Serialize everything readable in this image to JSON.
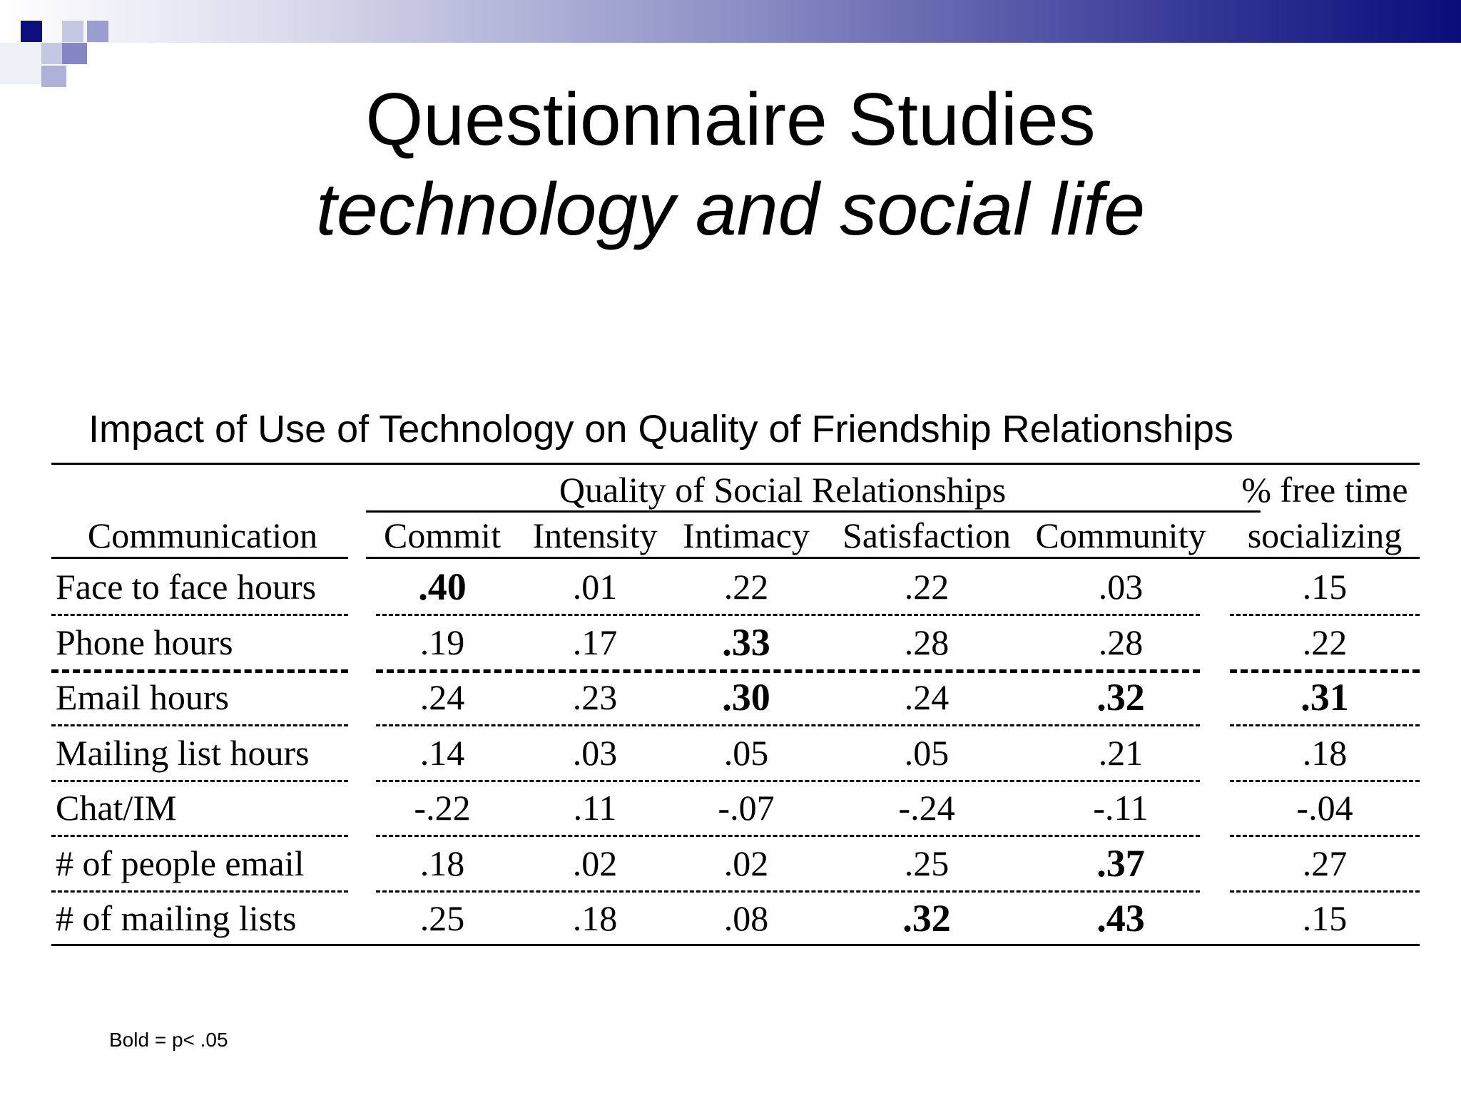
{
  "slide": {
    "title": "Questionnaire Studies",
    "subtitle": "technology and social life",
    "caption": "Impact of Use of Technology on Quality of Friendship Relationships",
    "footnote": "Bold = p< .05"
  },
  "table": {
    "group_header": "Quality of Social Relationships",
    "free_time_header_line1": "% free time",
    "free_time_header_line2": "socializing",
    "columns": [
      "Communication",
      "Commit",
      "Intensity",
      "Intimacy",
      "Satisfaction",
      "Community",
      "socializing"
    ],
    "rows": [
      {
        "label": "Face to face hours",
        "values": [
          ".40",
          ".01",
          ".22",
          ".22",
          ".03",
          ".15"
        ],
        "bold": [
          true,
          false,
          false,
          false,
          false,
          false
        ]
      },
      {
        "label": "Phone hours",
        "values": [
          ".19",
          ".17",
          ".33",
          ".28",
          ".28",
          ".22"
        ],
        "bold": [
          false,
          false,
          true,
          false,
          false,
          false
        ]
      },
      {
        "label": "Email hours",
        "values": [
          ".24",
          ".23",
          ".30",
          ".24",
          ".32",
          ".31"
        ],
        "bold": [
          false,
          false,
          true,
          false,
          true,
          true
        ]
      },
      {
        "label": "Mailing list hours",
        "values": [
          ".14",
          ".03",
          ".05",
          ".05",
          ".21",
          ".18"
        ],
        "bold": [
          false,
          false,
          false,
          false,
          false,
          false
        ]
      },
      {
        "label": "Chat/IM",
        "values": [
          "-.22",
          ".11",
          "-.07",
          "-.24",
          "-.11",
          "-.04"
        ],
        "bold": [
          false,
          false,
          false,
          false,
          false,
          false
        ]
      },
      {
        "label": "# of people email",
        "values": [
          ".18",
          ".02",
          ".02",
          ".25",
          ".37",
          ".27"
        ],
        "bold": [
          false,
          false,
          false,
          false,
          true,
          false
        ]
      },
      {
        "label": "# of mailing lists",
        "values": [
          ".25",
          ".18",
          ".08",
          ".32",
          ".43",
          ".15"
        ],
        "bold": [
          false,
          false,
          false,
          true,
          true,
          false
        ]
      }
    ]
  }
}
